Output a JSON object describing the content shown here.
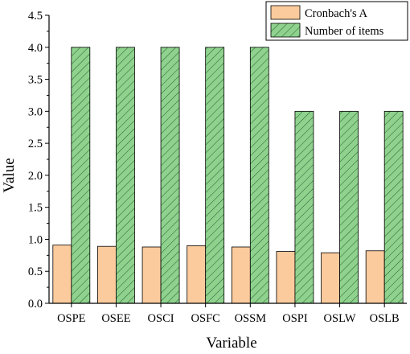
{
  "chart_data": {
    "type": "bar",
    "title": "",
    "xlabel": "Variable",
    "ylabel": "Value",
    "categories": [
      "OSPE",
      "OSEE",
      "OSCI",
      "OSFC",
      "OSSM",
      "OSPI",
      "OSLW",
      "OSLB"
    ],
    "ylim": [
      0.0,
      4.5
    ],
    "yticks": [
      "0.0",
      "0.5",
      "1.0",
      "1.5",
      "2.0",
      "2.5",
      "3.0",
      "3.5",
      "4.0",
      "4.5"
    ],
    "grid": false,
    "legend_position": "top-right",
    "series": [
      {
        "name": "Cronbach's A",
        "values": [
          0.91,
          0.89,
          0.88,
          0.9,
          0.88,
          0.81,
          0.79,
          0.82
        ],
        "color": "#FCCB9D",
        "pattern": "none"
      },
      {
        "name": "Number of items",
        "values": [
          4,
          4,
          4,
          4,
          4,
          3,
          3,
          3
        ],
        "color": "#8ED28E",
        "pattern": "diagonal-hatch"
      }
    ]
  }
}
